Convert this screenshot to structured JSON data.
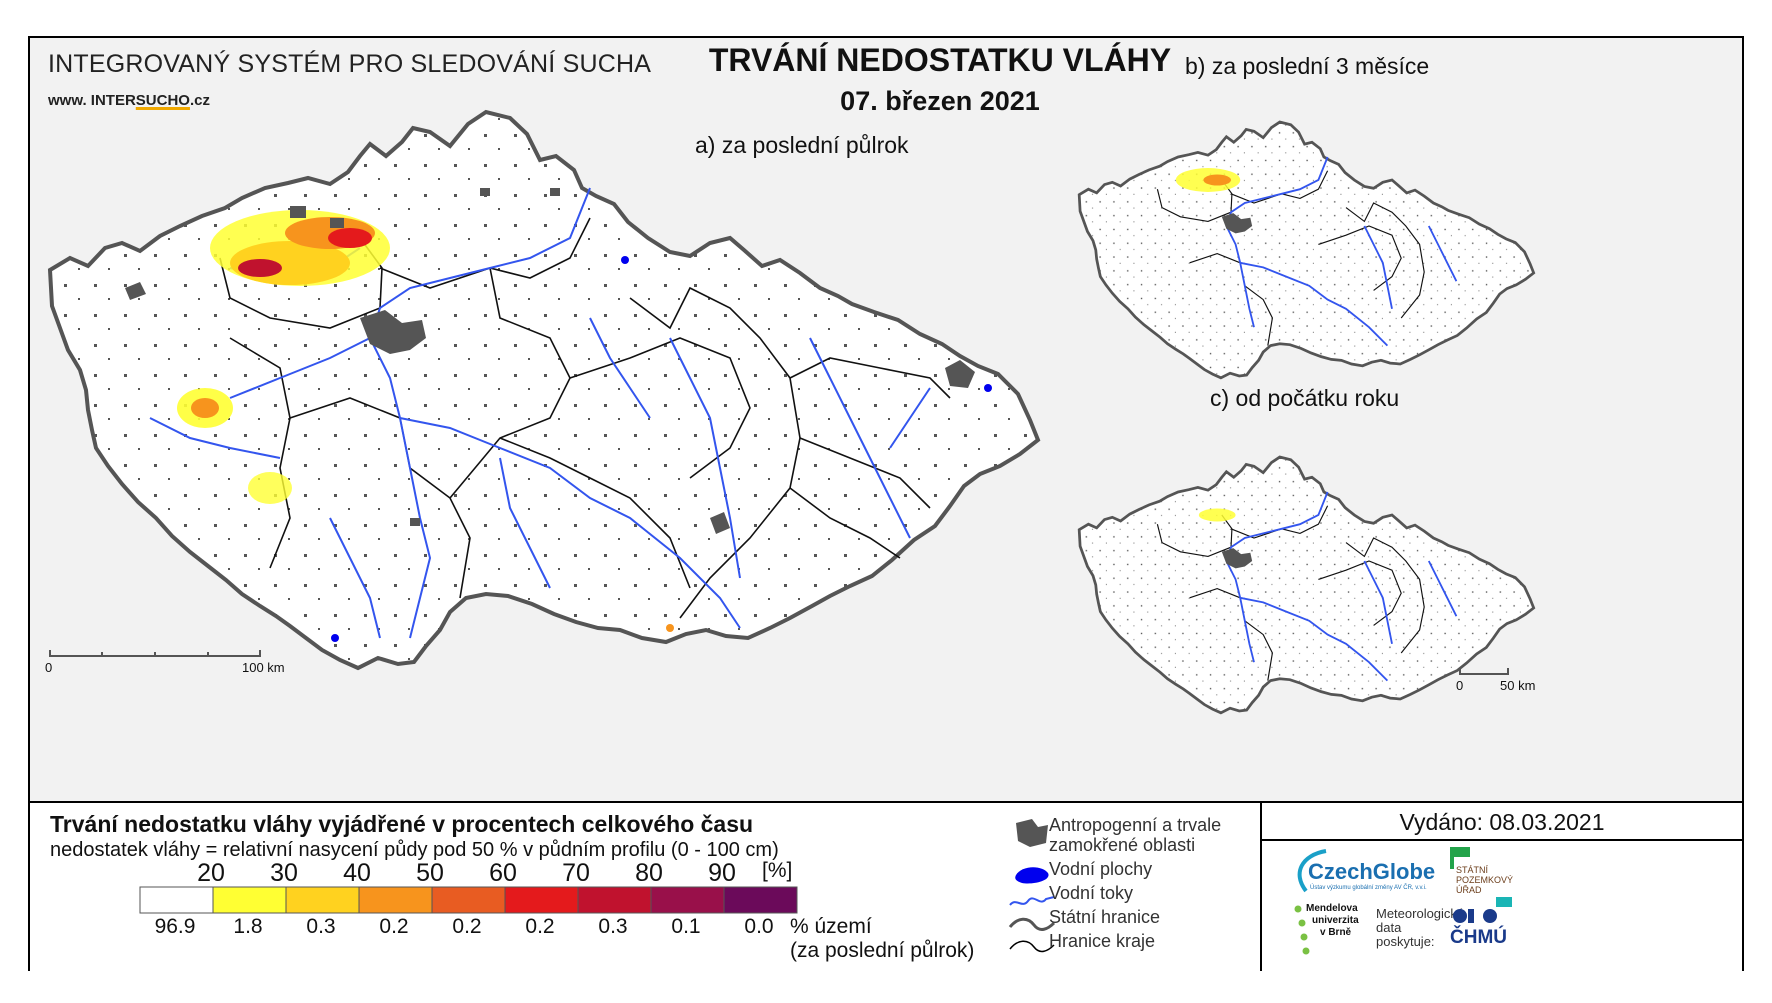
{
  "header": {
    "system_name": "INTEGROVANÝ SYSTÉM PRO SLEDOVÁNÍ SUCHA",
    "website_prefix": "www. INTER",
    "website_highlight": "SUCHO",
    "website_suffix": ".cz",
    "title": "TRVÁNÍ NEDOSTATKU VLÁHY",
    "date": "07. březen 2021"
  },
  "maps": {
    "main_label": "a) za poslední půlrok",
    "map_b_label": "b) za poslední 3 měsíce",
    "map_c_label": "c) od počátku roku",
    "main_scale": {
      "start": "0",
      "end": "100 km"
    },
    "small_scale": {
      "start": "0",
      "end": "50 km"
    }
  },
  "legend": {
    "title": "Trvání nedostatku vláhy vyjádřené v procentech celkového času",
    "subtitle": "nedostatek vláhy = relativní nasycení půdy pod 50 % v půdním profilu (0 - 100 cm)",
    "unit": "[%]",
    "ticks": [
      "20",
      "30",
      "40",
      "50",
      "60",
      "70",
      "80",
      "90"
    ],
    "classes": [
      {
        "color": "#ffffff",
        "share": "96.9"
      },
      {
        "color": "#ffff33",
        "share": "1.8"
      },
      {
        "color": "#ffd21f",
        "share": "0.3"
      },
      {
        "color": "#f7941d",
        "share": "0.2"
      },
      {
        "color": "#e85c22",
        "share": "0.2"
      },
      {
        "color": "#e41a1c",
        "share": "0.2"
      },
      {
        "color": "#c0122e",
        "share": "0.3"
      },
      {
        "color": "#99104a",
        "share": "0.1"
      },
      {
        "color": "#6b0a5a",
        "share": "0.0"
      }
    ],
    "share_label_line1": "% území",
    "share_label_line2": "(za poslední půlrok)"
  },
  "symbols": {
    "urban": {
      "label_line1": "Antropogenní a trvale",
      "label_line2": "zamokřené oblasti",
      "color": "#555555"
    },
    "water_bodies": {
      "label": "Vodní plochy",
      "color": "#0000ee"
    },
    "rivers": {
      "label": "Vodní toky",
      "color": "#3355ee"
    },
    "state_border": {
      "label": "Státní hranice",
      "color": "#555555"
    },
    "region_border": {
      "label": "Hranice kraje",
      "color": "#000000"
    }
  },
  "issued": "Vydáno: 08.03.2021",
  "logos": {
    "czechglobe": "CzechGlobe",
    "czechglobe_sub": "Ústav výzkumu globální změny AV ČR, v.v.i.",
    "spu_line1": "STÁTNÍ",
    "spu_line2": "POZEMKOVÝ",
    "spu_line3": "ÚŘAD",
    "mendel_line1": "Mendelova",
    "mendel_line2": "univerzita",
    "mendel_line3": "v Brně",
    "meteo_line1": "Meteorologická",
    "meteo_line2": "data",
    "meteo_line3": "poskytuje:",
    "chmu": "ČHMÚ"
  }
}
